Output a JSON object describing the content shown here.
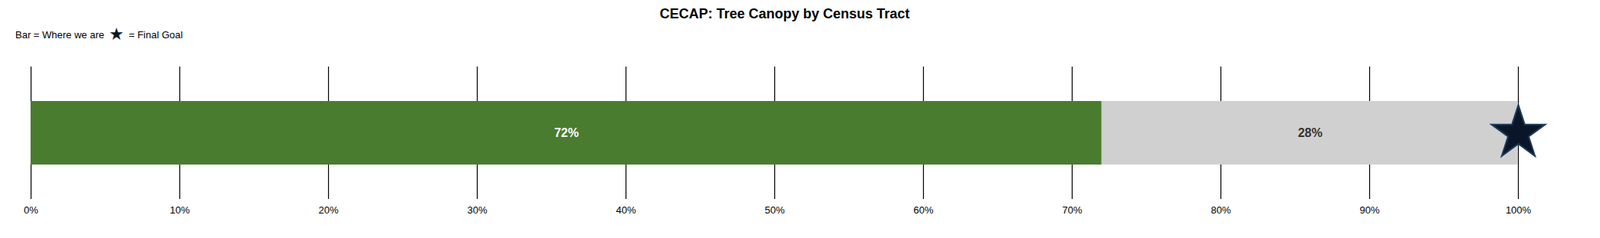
{
  "chart_data": {
    "type": "bar",
    "title": "CECAP: Tree Canopy by Census Tract",
    "orientation": "horizontal",
    "stacked": true,
    "data_labels": true,
    "categories": [
      null
    ],
    "series": [
      {
        "color": "#4a7c2f",
        "values": [
          72
        ],
        "value_labels": [
          "72%"
        ]
      },
      {
        "color": "#d0d0d0",
        "values": [
          28
        ],
        "value_labels": [
          "28%"
        ]
      }
    ],
    "goal": {
      "value": 100,
      "marker": "star",
      "color": "#0a1628"
    },
    "annotations": [
      "Bar = Where we are",
      "★",
      "= Final Goal"
    ],
    "xlim": [
      0,
      100
    ],
    "xticks": [
      {
        "value": 0,
        "label": "0%"
      },
      {
        "value": 10,
        "label": "10%"
      },
      {
        "value": 20,
        "label": "20%"
      },
      {
        "value": 30,
        "label": "30%"
      },
      {
        "value": 40,
        "label": "40%"
      },
      {
        "value": 50,
        "label": "50%"
      },
      {
        "value": 60,
        "label": "60%"
      },
      {
        "value": 70,
        "label": "70%"
      },
      {
        "value": 80,
        "label": "80%"
      },
      {
        "value": 90,
        "label": "90%"
      },
      {
        "value": 100,
        "label": "100%"
      }
    ],
    "grid": true,
    "tick_labels": "x"
  }
}
